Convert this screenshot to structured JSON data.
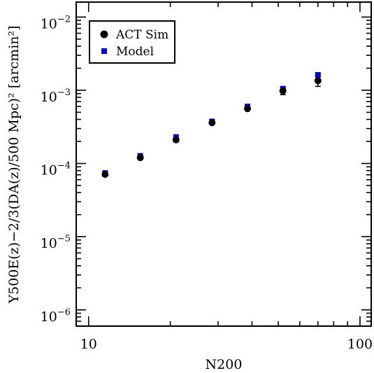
{
  "chart_data": {
    "type": "scatter",
    "xlabel": "N200",
    "ylabel": "Y500E(z)−2/3(DA(z)/500 Mpc)² [arcmin²]",
    "x_scale": "log",
    "y_scale": "log",
    "xlim": [
      9,
      110
    ],
    "ylim": [
      6e-07,
      0.016
    ],
    "x_ticks": [
      {
        "value": 10,
        "label": "10"
      },
      {
        "value": 100,
        "label": "100"
      }
    ],
    "y_ticks": [
      {
        "value": 1e-06,
        "base": "10",
        "exp": "−6"
      },
      {
        "value": 1e-05,
        "base": "10",
        "exp": "−5"
      },
      {
        "value": 0.0001,
        "base": "10",
        "exp": "−4"
      },
      {
        "value": 0.001,
        "base": "10",
        "exp": "−3"
      },
      {
        "value": 0.01,
        "base": "10",
        "exp": "−2"
      }
    ],
    "legend_position": "top-left",
    "legend": [
      {
        "label": "ACT Sim",
        "marker": "circle",
        "color": "#000000"
      },
      {
        "label": "Model",
        "marker": "square",
        "color": "#0000cc"
      }
    ],
    "series": [
      {
        "name": "ACT Sim",
        "marker": "circle",
        "color": "#000000",
        "x": [
          11.5,
          15.5,
          21,
          28.5,
          38.5,
          52,
          70
        ],
        "y": [
          7.1e-05,
          0.00012,
          0.00021,
          0.00036,
          0.00056,
          0.00098,
          0.00135
        ],
        "y_err": [
          3e-06,
          5e-06,
          1e-05,
          1.5e-05,
          3e-05,
          0.00011,
          0.00022
        ]
      },
      {
        "name": "Model",
        "marker": "square",
        "color": "#0000cc",
        "x": [
          11.5,
          15.5,
          21,
          28.5,
          38.5,
          52,
          70
        ],
        "y": [
          7.4e-05,
          0.000127,
          0.00023,
          0.000375,
          0.0006,
          0.00105,
          0.00162
        ]
      }
    ]
  }
}
